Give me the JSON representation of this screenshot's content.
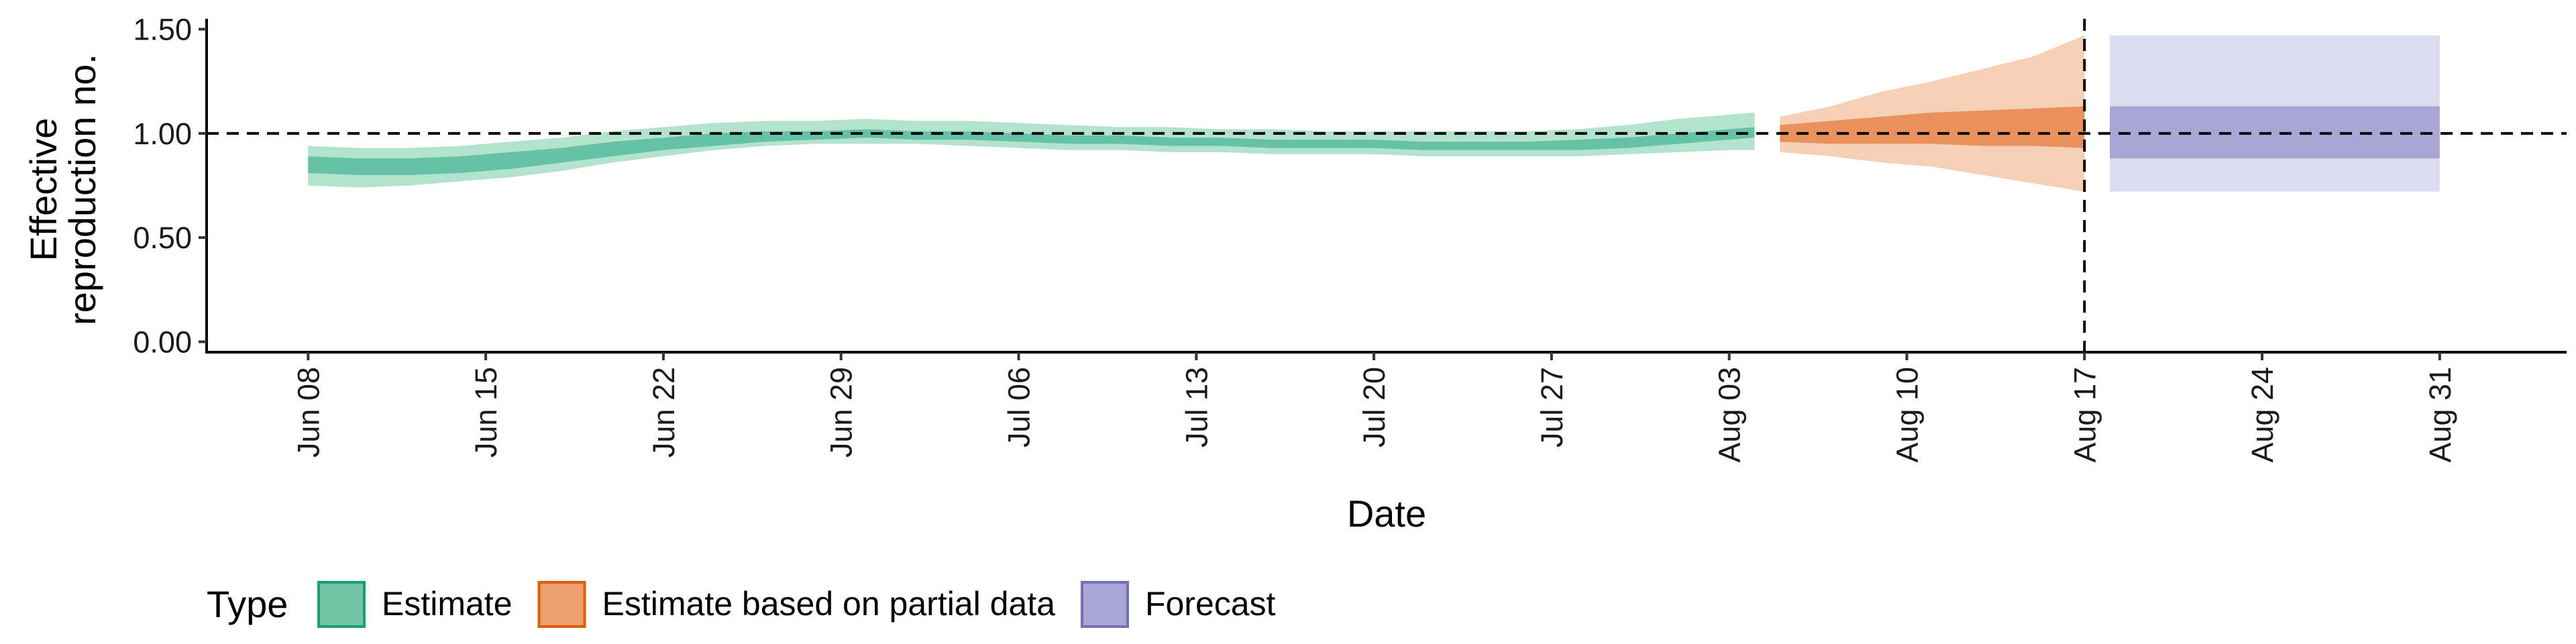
{
  "chart_data": {
    "type": "area",
    "x_unit": "date",
    "xlabel": "Date",
    "ylabel_lines": [
      "Effective",
      "reproduction no."
    ],
    "x_ticks": [
      "Jun 08",
      "Jun 15",
      "Jun 22",
      "Jun 29",
      "Jul 06",
      "Jul 13",
      "Jul 20",
      "Jul 27",
      "Aug 03",
      "Aug 10",
      "Aug 17",
      "Aug 24",
      "Aug 31"
    ],
    "y_ticks": [
      "0.00",
      "0.50",
      "1.00",
      "1.50"
    ],
    "ylim": [
      -0.05,
      1.55
    ],
    "xlim": [
      "2020-06-04",
      "2020-09-05"
    ],
    "reference_line_y": 1.0,
    "reference_line_x": "2020-08-17",
    "colors": {
      "Estimate": {
        "inner": "#66c2a5",
        "outer": "#b3e2cd",
        "swatch_fill": "#72c4a7",
        "swatch_border": "#1b9e77"
      },
      "Estimate based on partial data": {
        "inner": "#e9915a",
        "outer": "#f6d0b6",
        "swatch_fill": "#eba06f",
        "swatch_border": "#d95f02"
      },
      "Forecast": {
        "inner": "#a9a6d6",
        "outer": "#dcdcee",
        "swatch_fill": "#aaa6d6",
        "swatch_border": "#7570b3"
      }
    },
    "series": [
      {
        "name": "Estimate",
        "x": [
          "2020-06-08",
          "2020-06-10",
          "2020-06-12",
          "2020-06-14",
          "2020-06-16",
          "2020-06-18",
          "2020-06-20",
          "2020-06-22",
          "2020-06-24",
          "2020-06-26",
          "2020-06-28",
          "2020-06-30",
          "2020-07-02",
          "2020-07-04",
          "2020-07-06",
          "2020-07-08",
          "2020-07-10",
          "2020-07-12",
          "2020-07-14",
          "2020-07-16",
          "2020-07-18",
          "2020-07-20",
          "2020-07-22",
          "2020-07-24",
          "2020-07-26",
          "2020-07-28",
          "2020-07-30",
          "2020-08-01",
          "2020-08-03",
          "2020-08-04"
        ],
        "median": [
          0.85,
          0.84,
          0.84,
          0.85,
          0.87,
          0.89,
          0.92,
          0.95,
          0.97,
          0.98,
          0.99,
          1.0,
          0.99,
          0.99,
          0.98,
          0.97,
          0.97,
          0.96,
          0.96,
          0.95,
          0.95,
          0.95,
          0.94,
          0.94,
          0.94,
          0.94,
          0.95,
          0.97,
          0.99,
          1.0
        ],
        "lower_50": [
          0.81,
          0.8,
          0.8,
          0.81,
          0.83,
          0.86,
          0.89,
          0.92,
          0.94,
          0.96,
          0.97,
          0.98,
          0.97,
          0.97,
          0.96,
          0.95,
          0.95,
          0.94,
          0.94,
          0.93,
          0.93,
          0.93,
          0.92,
          0.92,
          0.92,
          0.92,
          0.93,
          0.95,
          0.97,
          0.98
        ],
        "upper_50": [
          0.89,
          0.88,
          0.88,
          0.89,
          0.91,
          0.93,
          0.96,
          0.98,
          1.0,
          1.01,
          1.01,
          1.02,
          1.01,
          1.01,
          1.0,
          0.99,
          0.99,
          0.98,
          0.98,
          0.97,
          0.97,
          0.97,
          0.96,
          0.96,
          0.96,
          0.97,
          0.98,
          1.0,
          1.02,
          1.03
        ],
        "lower_90": [
          0.75,
          0.74,
          0.75,
          0.77,
          0.79,
          0.82,
          0.86,
          0.89,
          0.92,
          0.94,
          0.95,
          0.95,
          0.95,
          0.94,
          0.93,
          0.92,
          0.92,
          0.91,
          0.91,
          0.9,
          0.9,
          0.9,
          0.89,
          0.89,
          0.89,
          0.89,
          0.9,
          0.91,
          0.92,
          0.92
        ],
        "upper_90": [
          0.94,
          0.93,
          0.93,
          0.94,
          0.96,
          0.98,
          1.01,
          1.03,
          1.05,
          1.06,
          1.06,
          1.07,
          1.06,
          1.06,
          1.05,
          1.04,
          1.03,
          1.03,
          1.02,
          1.02,
          1.01,
          1.01,
          1.01,
          1.01,
          1.01,
          1.02,
          1.04,
          1.07,
          1.09,
          1.1
        ]
      },
      {
        "name": "Estimate based on partial data",
        "x": [
          "2020-08-05",
          "2020-08-07",
          "2020-08-09",
          "2020-08-11",
          "2020-08-13",
          "2020-08-15",
          "2020-08-17"
        ],
        "median": [
          1.0,
          1.01,
          1.02,
          1.03,
          1.04,
          1.04,
          1.04
        ],
        "lower_50": [
          0.96,
          0.95,
          0.95,
          0.95,
          0.94,
          0.94,
          0.93
        ],
        "upper_50": [
          1.04,
          1.06,
          1.08,
          1.1,
          1.11,
          1.12,
          1.13
        ],
        "lower_90": [
          0.91,
          0.89,
          0.86,
          0.84,
          0.8,
          0.76,
          0.72
        ],
        "upper_90": [
          1.08,
          1.13,
          1.2,
          1.25,
          1.31,
          1.37,
          1.47
        ]
      },
      {
        "name": "Forecast",
        "x": [
          "2020-08-18",
          "2020-08-31"
        ],
        "median": [
          1.01,
          1.01
        ],
        "lower_50": [
          0.88,
          0.88
        ],
        "upper_50": [
          1.13,
          1.13
        ],
        "lower_90": [
          0.72,
          0.72
        ],
        "upper_90": [
          1.47,
          1.47
        ]
      }
    ],
    "legend": {
      "title": "Type",
      "position": "bottom-left",
      "entries": [
        "Estimate",
        "Estimate based on partial data",
        "Forecast"
      ]
    }
  }
}
